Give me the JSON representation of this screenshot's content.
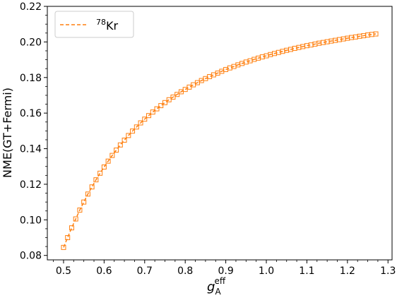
{
  "chart_data": {
    "type": "scatter",
    "xlabel_main": "g",
    "xlabel_sub": "A",
    "xlabel_sup": "eff",
    "ylabel": "NME(GT+Fermi)",
    "xlim": [
      0.46,
      1.31
    ],
    "ylim": [
      0.0775,
      0.22
    ],
    "xticks": [
      0.5,
      0.6,
      0.7,
      0.8,
      0.9,
      1.0,
      1.1,
      1.2,
      1.3
    ],
    "xtick_labels": [
      "0.5",
      "0.6",
      "0.7",
      "0.8",
      "0.9",
      "1.0",
      "1.1",
      "1.2",
      "1.3"
    ],
    "yticks": [
      0.08,
      0.1,
      0.12,
      0.14,
      0.16,
      0.18,
      0.2,
      0.22
    ],
    "ytick_labels": [
      "0.08",
      "0.10",
      "0.12",
      "0.14",
      "0.16",
      "0.18",
      "0.20",
      "0.22"
    ],
    "grid": false,
    "legend_position": "top-left",
    "series": [
      {
        "name_sup": "78",
        "name_main": "Kr",
        "color": "#ff7f0e",
        "linestyle": "dashed",
        "marker": "square-open",
        "x": [
          0.5,
          0.51,
          0.52,
          0.53,
          0.54,
          0.55,
          0.56,
          0.57,
          0.58,
          0.59,
          0.6,
          0.61,
          0.62,
          0.63,
          0.64,
          0.65,
          0.66,
          0.67,
          0.68,
          0.69,
          0.7,
          0.71,
          0.72,
          0.73,
          0.74,
          0.75,
          0.76,
          0.77,
          0.78,
          0.79,
          0.8,
          0.81,
          0.82,
          0.83,
          0.84,
          0.85,
          0.86,
          0.87,
          0.88,
          0.89,
          0.9,
          0.91,
          0.92,
          0.93,
          0.94,
          0.95,
          0.96,
          0.97,
          0.98,
          0.99,
          1.0,
          1.01,
          1.02,
          1.03,
          1.04,
          1.05,
          1.06,
          1.07,
          1.08,
          1.09,
          1.1,
          1.11,
          1.12,
          1.13,
          1.14,
          1.15,
          1.16,
          1.17,
          1.18,
          1.19,
          1.2,
          1.21,
          1.22,
          1.23,
          1.24,
          1.25,
          1.26,
          1.27
        ],
        "y": [
          0.0845,
          0.09,
          0.0955,
          0.1005,
          0.1055,
          0.11,
          0.1145,
          0.1185,
          0.1225,
          0.1262,
          0.1297,
          0.133,
          0.1362,
          0.1392,
          0.1421,
          0.1448,
          0.1474,
          0.1499,
          0.1522,
          0.1545,
          0.1566,
          0.1586,
          0.1606,
          0.1624,
          0.1642,
          0.1659,
          0.1675,
          0.169,
          0.1705,
          0.172,
          0.1733,
          0.1746,
          0.1759,
          0.1771,
          0.1783,
          0.1794,
          0.1805,
          0.1815,
          0.1825,
          0.1835,
          0.1845,
          0.1854,
          0.1862,
          0.1871,
          0.1879,
          0.1887,
          0.1894,
          0.1902,
          0.1909,
          0.1916,
          0.1922,
          0.1929,
          0.1935,
          0.1941,
          0.1947,
          0.1953,
          0.1958,
          0.1964,
          0.1969,
          0.1974,
          0.1979,
          0.1983,
          0.1988,
          0.1993,
          0.1997,
          0.2001,
          0.2005,
          0.2009,
          0.2013,
          0.2017,
          0.2021,
          0.2025,
          0.2028,
          0.2032,
          0.2035,
          0.2039,
          0.2042,
          0.2045
        ]
      }
    ]
  }
}
